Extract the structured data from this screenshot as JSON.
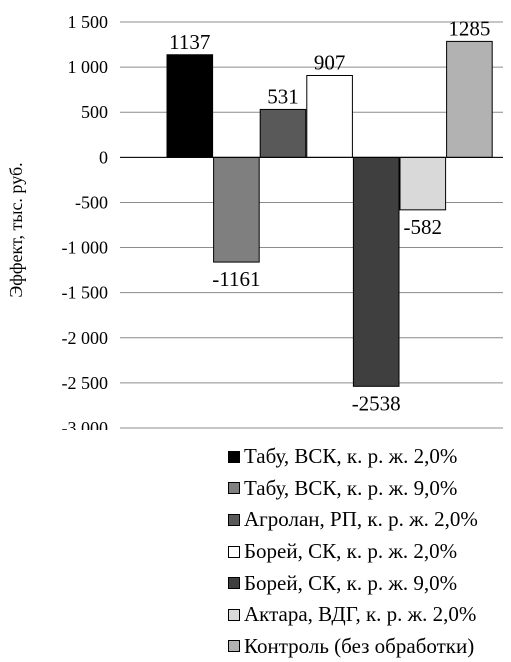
{
  "chart_data": {
    "type": "bar",
    "ylabel": "Эффект, тыс. руб.",
    "ylim": [
      -3000,
      1500
    ],
    "yticks": [
      1500,
      1000,
      500,
      0,
      -500,
      -1000,
      -1500,
      -2000,
      -2500,
      -3000
    ],
    "ytick_labels": [
      "1 500",
      "1 000",
      "500",
      "0",
      "-500",
      "-1 000",
      "-1 500",
      "-2 000",
      "-2 500",
      "-3 000"
    ],
    "grid": true,
    "legend_position": "bottom",
    "series": [
      {
        "name": "Табу, ВСК, к. р. ж. 2,0%",
        "value": 1137,
        "label": "1137",
        "color": "#000000"
      },
      {
        "name": "Табу, ВСК, к. р. ж. 9,0%",
        "value": -1161,
        "label": "-1161",
        "color": "#7f7f7f"
      },
      {
        "name": "Агролан, РП, к. р. ж. 2,0%",
        "value": 531,
        "label": "531",
        "color": "#595959"
      },
      {
        "name": "Борей, СК, к. р. ж. 2,0%",
        "value": 907,
        "label": "907",
        "color": "#ffffff"
      },
      {
        "name": "Борей, СК, к. р. ж. 9,0%",
        "value": -2538,
        "label": "-2538",
        "color": "#3f3f3f"
      },
      {
        "name": "Актара, ВДГ, к. р. ж. 2,0%",
        "value": -582,
        "label": "-582",
        "color": "#d9d9d9"
      },
      {
        "name": "Контроль (без обработки)",
        "value": 1285,
        "label": "1285",
        "color": "#b2b2b2"
      }
    ]
  }
}
